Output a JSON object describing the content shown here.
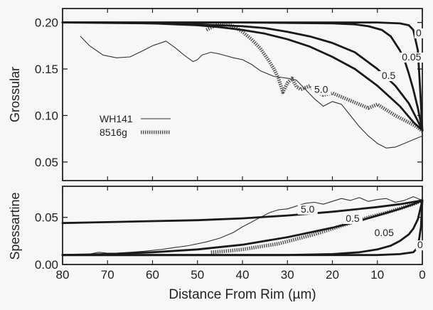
{
  "chart_data": [
    {
      "type": "line",
      "ylabel": "Grossular",
      "xlabel": "",
      "xlim": [
        80,
        0
      ],
      "ylim": [
        0.03,
        0.215
      ],
      "yticks": [
        0.05,
        0.1,
        0.15,
        0.2
      ],
      "ytick_labels": [
        "0.05",
        "0.10",
        "0.15",
        "0.20"
      ],
      "legend_position": "middle-left",
      "series": [
        {
          "name": "WH141",
          "style": "thin",
          "color": "#333333",
          "x": [
            76,
            74,
            71,
            68,
            65,
            62,
            60,
            57,
            55,
            53,
            51,
            50,
            49,
            47,
            45,
            42,
            40,
            38,
            36,
            33,
            30,
            28,
            26,
            24,
            22,
            20,
            18,
            16,
            14,
            12,
            10,
            8,
            6,
            4,
            2,
            0
          ],
          "y": [
            0.185,
            0.175,
            0.165,
            0.162,
            0.163,
            0.17,
            0.175,
            0.18,
            0.173,
            0.165,
            0.158,
            0.16,
            0.165,
            0.168,
            0.166,
            0.162,
            0.16,
            0.155,
            0.148,
            0.142,
            0.14,
            0.138,
            0.128,
            0.118,
            0.11,
            0.115,
            0.112,
            0.1,
            0.088,
            0.078,
            0.07,
            0.065,
            0.066,
            0.07,
            0.074,
            0.078
          ]
        },
        {
          "name": "8516g",
          "style": "hatched",
          "color": "#555555",
          "x": [
            48,
            46,
            44,
            42,
            40,
            38,
            36,
            35,
            34,
            33,
            32,
            31,
            30,
            29,
            28,
            27,
            26,
            25,
            24,
            22,
            20,
            18,
            16,
            14,
            12,
            10,
            8,
            6,
            4,
            2,
            1,
            0
          ],
          "y": [
            0.192,
            0.197,
            0.199,
            0.196,
            0.19,
            0.182,
            0.172,
            0.165,
            0.158,
            0.15,
            0.14,
            0.125,
            0.135,
            0.14,
            0.131,
            0.128,
            0.13,
            0.132,
            0.126,
            0.122,
            0.124,
            0.12,
            0.116,
            0.112,
            0.108,
            0.112,
            0.106,
            0.1,
            0.095,
            0.09,
            0.087,
            0.083
          ]
        },
        {
          "name": "0",
          "style": "model",
          "color": "#1a1a1a",
          "x": [
            80,
            60,
            40,
            20,
            10,
            5,
            3,
            2,
            1,
            0.5,
            0
          ],
          "y": [
            0.2,
            0.2,
            0.2,
            0.2,
            0.2,
            0.199,
            0.197,
            0.192,
            0.17,
            0.13,
            0.084
          ]
        },
        {
          "name": "0.05",
          "style": "model",
          "color": "#1a1a1a",
          "x": [
            80,
            40,
            20,
            15,
            12,
            9,
            7,
            5,
            4,
            3,
            2,
            1,
            0
          ],
          "y": [
            0.2,
            0.2,
            0.199,
            0.198,
            0.196,
            0.192,
            0.185,
            0.17,
            0.16,
            0.145,
            0.128,
            0.108,
            0.084
          ]
        },
        {
          "name": "0.5",
          "style": "model",
          "color": "#1a1a1a",
          "x": [
            80,
            60,
            50,
            40,
            35,
            30,
            25,
            20,
            15,
            10,
            6,
            3,
            1,
            0
          ],
          "y": [
            0.2,
            0.199,
            0.198,
            0.196,
            0.194,
            0.19,
            0.185,
            0.178,
            0.168,
            0.15,
            0.132,
            0.113,
            0.094,
            0.084
          ]
        },
        {
          "name": "5.0",
          "style": "model",
          "color": "#1a1a1a",
          "x": [
            80,
            70,
            60,
            50,
            45,
            40,
            35,
            30,
            25,
            20,
            15,
            10,
            5,
            2,
            0
          ],
          "y": [
            0.2,
            0.2,
            0.199,
            0.197,
            0.195,
            0.192,
            0.188,
            0.182,
            0.174,
            0.163,
            0.15,
            0.132,
            0.11,
            0.093,
            0.084
          ]
        }
      ],
      "curve_labels": [
        {
          "text": "0",
          "x": 0.8,
          "y": 0.186
        },
        {
          "text": "0.05",
          "x": 2.4,
          "y": 0.16
        },
        {
          "text": "0.5",
          "x": 7.5,
          "y": 0.14
        },
        {
          "text": "5.0",
          "x": 22.5,
          "y": 0.125
        }
      ]
    },
    {
      "type": "line",
      "ylabel": "Spessartine",
      "xlabel": "Distance From Rim (µm)",
      "xlim": [
        80,
        0
      ],
      "ylim": [
        0.0,
        0.083
      ],
      "xticks": [
        80,
        70,
        60,
        50,
        40,
        30,
        20,
        10,
        0
      ],
      "xtick_labels": [
        "80",
        "70",
        "60",
        "50",
        "40",
        "30",
        "20",
        "10",
        "0"
      ],
      "yticks": [
        0.0,
        0.05
      ],
      "ytick_labels": [
        "0.00",
        "0.05"
      ],
      "series": [
        {
          "name": "WH141",
          "style": "thin",
          "color": "#333333",
          "x": [
            76,
            74,
            72,
            70,
            68,
            65,
            62,
            58,
            55,
            52,
            48,
            45,
            42,
            40,
            38,
            36,
            34,
            32,
            30,
            28,
            26,
            24,
            22,
            20,
            18,
            16,
            14,
            12,
            10,
            8,
            6,
            4,
            2,
            1,
            0
          ],
          "y": [
            0.01,
            0.011,
            0.013,
            0.012,
            0.012,
            0.013,
            0.014,
            0.016,
            0.018,
            0.02,
            0.024,
            0.028,
            0.034,
            0.04,
            0.045,
            0.05,
            0.055,
            0.058,
            0.059,
            0.062,
            0.065,
            0.066,
            0.064,
            0.067,
            0.07,
            0.068,
            0.071,
            0.067,
            0.069,
            0.07,
            0.066,
            0.068,
            0.072,
            0.07,
            0.068
          ]
        },
        {
          "name": "8516g",
          "style": "hatched",
          "color": "#555555",
          "x": [
            47,
            44,
            40,
            36,
            32,
            28,
            24,
            20,
            16,
            12,
            8,
            4,
            2,
            0
          ],
          "y": [
            0.013,
            0.014,
            0.016,
            0.019,
            0.022,
            0.027,
            0.032,
            0.038,
            0.044,
            0.05,
            0.055,
            0.061,
            0.064,
            0.068
          ]
        },
        {
          "name": "0",
          "style": "model",
          "color": "#1a1a1a",
          "x": [
            80,
            60,
            40,
            20,
            10,
            5,
            2,
            1,
            0.3,
            0
          ],
          "y": [
            0.01,
            0.01,
            0.01,
            0.01,
            0.01,
            0.011,
            0.013,
            0.018,
            0.04,
            0.068
          ]
        },
        {
          "name": "0.05",
          "style": "model",
          "color": "#1a1a1a",
          "x": [
            80,
            40,
            30,
            20,
            14,
            10,
            7,
            5,
            3,
            2,
            1,
            0
          ],
          "y": [
            0.01,
            0.01,
            0.01,
            0.011,
            0.013,
            0.016,
            0.02,
            0.025,
            0.032,
            0.038,
            0.048,
            0.068
          ]
        },
        {
          "name": "0.5",
          "style": "model",
          "color": "#1a1a1a",
          "x": [
            80,
            70,
            60,
            50,
            40,
            30,
            20,
            15,
            10,
            5,
            2,
            0
          ],
          "y": [
            0.01,
            0.011,
            0.013,
            0.016,
            0.021,
            0.029,
            0.039,
            0.045,
            0.052,
            0.059,
            0.064,
            0.068
          ]
        },
        {
          "name": "5.0",
          "style": "model",
          "color": "#1a1a1a",
          "x": [
            80,
            70,
            60,
            50,
            40,
            30,
            20,
            10,
            5,
            0
          ],
          "y": [
            0.044,
            0.045,
            0.046,
            0.047,
            0.049,
            0.052,
            0.056,
            0.061,
            0.064,
            0.068
          ]
        }
      ],
      "curve_labels": [
        {
          "text": "5.0",
          "x": 25.5,
          "y": 0.056
        },
        {
          "text": "0.5",
          "x": 15.5,
          "y": 0.046
        },
        {
          "text": "0.05",
          "x": 8.5,
          "y": 0.031
        },
        {
          "text": "0",
          "x": 0.5,
          "y": 0.018
        }
      ]
    }
  ]
}
